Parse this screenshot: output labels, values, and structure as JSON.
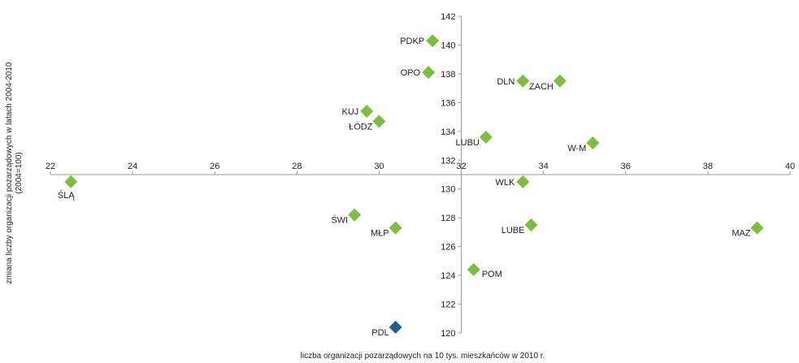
{
  "chart_data": {
    "type": "scatter",
    "title": "",
    "xlabel": "liczba organizacji pozarządowych na 10 tys. mieszkańców w 2010 r.",
    "ylabel_line1": "zmiana liczby organizacji pozarządowych w latach 2004-2010",
    "ylabel_line2": "(2004=100)",
    "xlim": [
      22,
      40
    ],
    "ylim": [
      120,
      142
    ],
    "x_ticks": [
      "22",
      "24",
      "26",
      "28",
      "30",
      "32",
      "34",
      "36",
      "38",
      "40"
    ],
    "y_ticks": [
      "120",
      "122",
      "124",
      "126",
      "128",
      "130",
      "132",
      "134",
      "136",
      "138",
      "140",
      "142"
    ],
    "axes_cross": {
      "x": 32,
      "y": 131
    },
    "grid": false,
    "colors": {
      "default": "#7cbf3f",
      "highlight": "#1f5f8b",
      "axis": "#999999"
    },
    "points": [
      {
        "label": "PDKP",
        "x": 31.3,
        "y": 140.3,
        "color": "default",
        "label_pos": "left"
      },
      {
        "label": "OPO",
        "x": 31.2,
        "y": 138.1,
        "color": "default",
        "label_pos": "left"
      },
      {
        "label": "DLN",
        "x": 33.5,
        "y": 137.5,
        "color": "default",
        "label_pos": "left"
      },
      {
        "label": "ZACH",
        "x": 34.4,
        "y": 137.5,
        "color": "default",
        "label_pos": "left-below"
      },
      {
        "label": "KUJ",
        "x": 29.7,
        "y": 135.4,
        "color": "default",
        "label_pos": "left"
      },
      {
        "label": "ŁÓDZ",
        "x": 30.0,
        "y": 134.7,
        "color": "default",
        "label_pos": "left-below"
      },
      {
        "label": "LUBU",
        "x": 32.6,
        "y": 133.6,
        "color": "default",
        "label_pos": "left-below"
      },
      {
        "label": "W-M",
        "x": 35.2,
        "y": 133.2,
        "color": "default",
        "label_pos": "left-below"
      },
      {
        "label": "ŚLĄ",
        "x": 22.5,
        "y": 130.5,
        "color": "default",
        "label_pos": "below"
      },
      {
        "label": "WLK",
        "x": 33.5,
        "y": 130.5,
        "color": "default",
        "label_pos": "left"
      },
      {
        "label": "ŚWI",
        "x": 29.4,
        "y": 128.2,
        "color": "default",
        "label_pos": "left-below"
      },
      {
        "label": "MŁP",
        "x": 30.4,
        "y": 127.3,
        "color": "default",
        "label_pos": "left-below"
      },
      {
        "label": "LUBE",
        "x": 33.7,
        "y": 127.5,
        "color": "default",
        "label_pos": "left-below"
      },
      {
        "label": "MAZ",
        "x": 39.2,
        "y": 127.3,
        "color": "default",
        "label_pos": "left-below"
      },
      {
        "label": "POM",
        "x": 32.3,
        "y": 124.4,
        "color": "default",
        "label_pos": "right-below"
      },
      {
        "label": "PDL",
        "x": 30.4,
        "y": 120.4,
        "color": "highlight",
        "label_pos": "left-below"
      }
    ]
  }
}
